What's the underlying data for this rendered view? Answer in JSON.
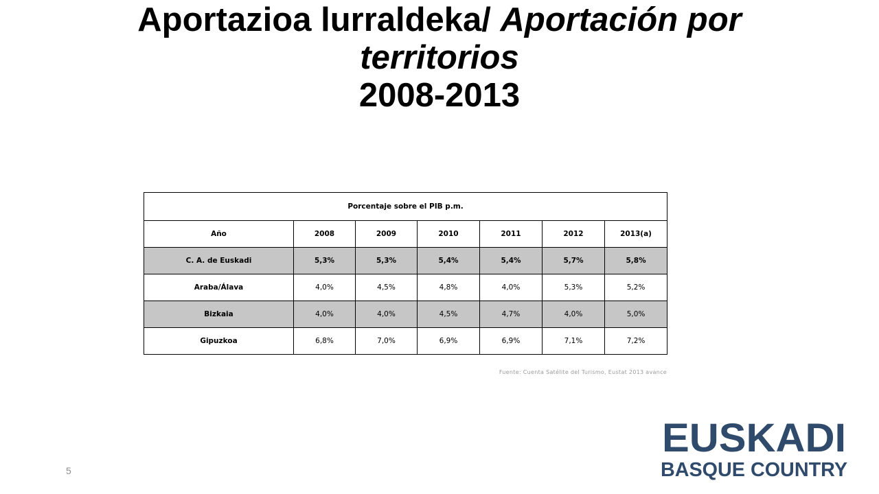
{
  "title": {
    "part1": "Aportazioa lurraldeka/ ",
    "part2": "Aportación por",
    "part3": "territorios",
    "part4": "2008-2013"
  },
  "table": {
    "caption": "Porcentaje sobre el PIB p.m.",
    "columns": [
      "Año",
      "2008",
      "2009",
      "2010",
      "2011",
      "2012",
      "2013(a)"
    ],
    "rows": [
      {
        "label": "C. A. de Euskadi",
        "values": [
          "5,3%",
          "5,3%",
          "5,4%",
          "5,4%",
          "5,7%",
          "5,8%"
        ]
      },
      {
        "label": "Araba/Álava",
        "values": [
          "4,0%",
          "4,5%",
          "4,8%",
          "4,0%",
          "5,3%",
          "5,2%"
        ]
      },
      {
        "label": "Bizkaia",
        "values": [
          "4,0%",
          "4,0%",
          "4,5%",
          "4,7%",
          "4,0%",
          "5,0%"
        ]
      },
      {
        "label": "Gipuzkoa",
        "values": [
          "6,8%",
          "7,0%",
          "6,9%",
          "6,9%",
          "7,1%",
          "7,2%"
        ]
      }
    ]
  },
  "source": "Fuente: Cuenta Satélite del Turismo, Eustat 2013 avance",
  "page_number": "5",
  "logo": {
    "line1": "EUSKADI",
    "line2": "BASQUE COUNTRY",
    "color": "#2f4a6b",
    "icon": "euskadi-logo"
  }
}
